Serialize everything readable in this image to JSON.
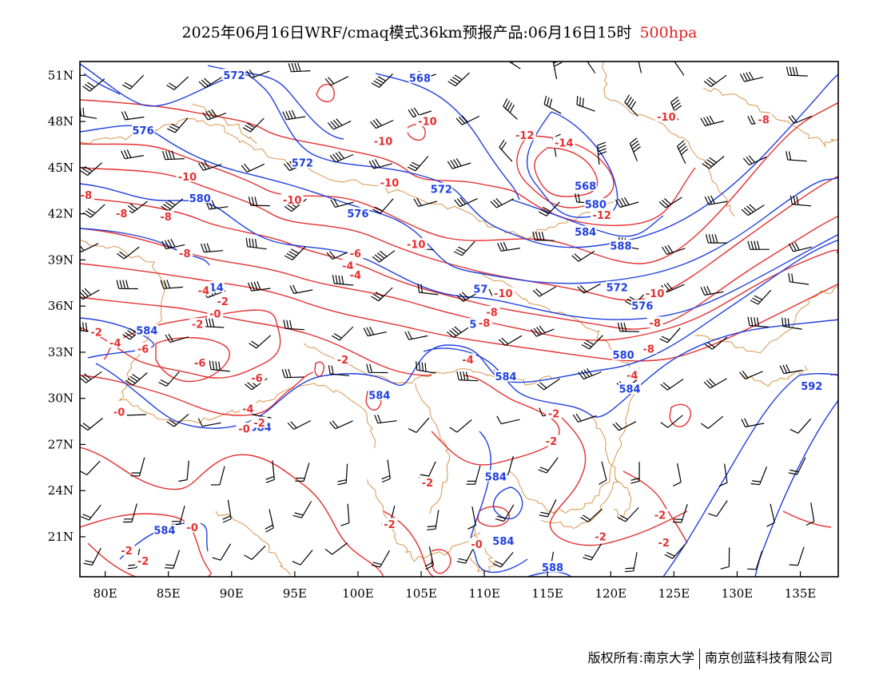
{
  "header": {
    "title": "2025年06月16日WRF/cmaq模式36km预报产品:06月16日15时",
    "level": "500hpa"
  },
  "axes": {
    "lon_range": [
      78,
      138
    ],
    "lat_range": [
      18.4,
      51.9
    ],
    "lon_ticks": [
      "80E",
      "85E",
      "90E",
      "95E",
      "100E",
      "105E",
      "110E",
      "115E",
      "120E",
      "125E",
      "130E",
      "135E"
    ],
    "lat_ticks": [
      "51N",
      "48N",
      "45N",
      "42N",
      "39N",
      "36N",
      "33N",
      "30N",
      "27N",
      "24N",
      "21N"
    ]
  },
  "colors": {
    "geopotential": "#1f3fe0",
    "temperature": "#e53030",
    "boundary": "#d68a3a",
    "wind": "#000000",
    "title_level": "#e02020"
  },
  "geopotential_labels": [
    {
      "text": "572",
      "lon": 90.2,
      "lat": 51.0
    },
    {
      "text": "568",
      "lon": 104.9,
      "lat": 50.8
    },
    {
      "text": "576",
      "lon": 83.0,
      "lat": 47.4
    },
    {
      "text": "572",
      "lon": 95.6,
      "lat": 45.3
    },
    {
      "text": "572",
      "lon": 106.6,
      "lat": 43.6
    },
    {
      "text": "580",
      "lon": 87.5,
      "lat": 43.0
    },
    {
      "text": "576",
      "lon": 100.0,
      "lat": 42.0
    },
    {
      "text": "568",
      "lon": 118.0,
      "lat": 43.8
    },
    {
      "text": "580",
      "lon": 118.8,
      "lat": 42.6
    },
    {
      "text": "584",
      "lon": 118.0,
      "lat": 40.8
    },
    {
      "text": "588",
      "lon": 120.8,
      "lat": 39.9
    },
    {
      "text": "572",
      "lon": 120.5,
      "lat": 37.2
    },
    {
      "text": "576",
      "lon": 122.5,
      "lat": 36.0
    },
    {
      "text": "584",
      "lon": 83.3,
      "lat": 34.4
    },
    {
      "text": "580",
      "lon": 121.0,
      "lat": 32.8
    },
    {
      "text": "584",
      "lon": 111.7,
      "lat": 31.4
    },
    {
      "text": "584",
      "lon": 121.5,
      "lat": 30.6
    },
    {
      "text": "584",
      "lon": 101.7,
      "lat": 30.2
    },
    {
      "text": "584",
      "lon": 92.3,
      "lat": 28.1
    },
    {
      "text": "592",
      "lon": 135.9,
      "lat": 30.8
    },
    {
      "text": "584",
      "lon": 110.9,
      "lat": 24.9
    },
    {
      "text": "584",
      "lon": 84.7,
      "lat": 21.4
    },
    {
      "text": "584",
      "lon": 111.5,
      "lat": 20.7
    },
    {
      "text": "588",
      "lon": 115.4,
      "lat": 19.0
    },
    {
      "text": "57",
      "lon": 109.7,
      "lat": 37.1
    },
    {
      "text": "14",
      "lon": 88.8,
      "lat": 37.2
    },
    {
      "text": "5",
      "lon": 109.1,
      "lat": 34.8
    }
  ],
  "temperature_labels": [
    {
      "text": "-10",
      "lon": 105.5,
      "lat": 48.0
    },
    {
      "text": "-10",
      "lon": 102.0,
      "lat": 46.7
    },
    {
      "text": "-12",
      "lon": 113.2,
      "lat": 47.1
    },
    {
      "text": "-14",
      "lon": 116.3,
      "lat": 46.6
    },
    {
      "text": "-10",
      "lon": 124.4,
      "lat": 48.3
    },
    {
      "text": "-8",
      "lon": 132.1,
      "lat": 48.1
    },
    {
      "text": "-10",
      "lon": 86.5,
      "lat": 44.4
    },
    {
      "text": "-10",
      "lon": 102.5,
      "lat": 44.0
    },
    {
      "text": "-10",
      "lon": 94.8,
      "lat": 42.9
    },
    {
      "text": "-8",
      "lon": 78.5,
      "lat": 43.2
    },
    {
      "text": "-8",
      "lon": 81.3,
      "lat": 42.0
    },
    {
      "text": "-8",
      "lon": 84.8,
      "lat": 41.8
    },
    {
      "text": "-12",
      "lon": 119.3,
      "lat": 41.9
    },
    {
      "text": "-10",
      "lon": 104.6,
      "lat": 40.0
    },
    {
      "text": "-8",
      "lon": 86.3,
      "lat": 39.4
    },
    {
      "text": "-6",
      "lon": 99.8,
      "lat": 39.4
    },
    {
      "text": "-4",
      "lon": 99.2,
      "lat": 38.6
    },
    {
      "text": "-4",
      "lon": 99.8,
      "lat": 38.0
    },
    {
      "text": "-10",
      "lon": 111.5,
      "lat": 36.8
    },
    {
      "text": "-10",
      "lon": 123.5,
      "lat": 36.8
    },
    {
      "text": "-4",
      "lon": 87.8,
      "lat": 37.0
    },
    {
      "text": "-2",
      "lon": 89.3,
      "lat": 36.3
    },
    {
      "text": "-0",
      "lon": 88.7,
      "lat": 35.5
    },
    {
      "text": "-8",
      "lon": 110.6,
      "lat": 35.6
    },
    {
      "text": "-8",
      "lon": 110.0,
      "lat": 34.9
    },
    {
      "text": "-8",
      "lon": 123.5,
      "lat": 34.9
    },
    {
      "text": "-2",
      "lon": 87.3,
      "lat": 34.8
    },
    {
      "text": "-2",
      "lon": 79.3,
      "lat": 34.3
    },
    {
      "text": "-4",
      "lon": 80.8,
      "lat": 33.6
    },
    {
      "text": "-6",
      "lon": 83.0,
      "lat": 33.2
    },
    {
      "text": "-8",
      "lon": 123.0,
      "lat": 33.2
    },
    {
      "text": "-2",
      "lon": 98.8,
      "lat": 32.5
    },
    {
      "text": "-4",
      "lon": 108.7,
      "lat": 32.5
    },
    {
      "text": "-6",
      "lon": 87.5,
      "lat": 32.3
    },
    {
      "text": "-6",
      "lon": 92.0,
      "lat": 31.3
    },
    {
      "text": "-4",
      "lon": 121.7,
      "lat": 31.5
    },
    {
      "text": "-0",
      "lon": 81.1,
      "lat": 29.1
    },
    {
      "text": "-4",
      "lon": 91.3,
      "lat": 29.3
    },
    {
      "text": "-2",
      "lon": 92.2,
      "lat": 28.4
    },
    {
      "text": "-0",
      "lon": 91.0,
      "lat": 28.0
    },
    {
      "text": "-2",
      "lon": 115.5,
      "lat": 29.0
    },
    {
      "text": "-2",
      "lon": 115.3,
      "lat": 27.2
    },
    {
      "text": "-2",
      "lon": 105.5,
      "lat": 24.5
    },
    {
      "text": "-2",
      "lon": 123.9,
      "lat": 22.4
    },
    {
      "text": "-2",
      "lon": 102.5,
      "lat": 21.8
    },
    {
      "text": "-0",
      "lon": 86.9,
      "lat": 21.6
    },
    {
      "text": "-2",
      "lon": 119.2,
      "lat": 21.0
    },
    {
      "text": "-2",
      "lon": 124.2,
      "lat": 20.6
    },
    {
      "text": "-0",
      "lon": 109.4,
      "lat": 20.5
    },
    {
      "text": "-2",
      "lon": 81.7,
      "lat": 20.1
    },
    {
      "text": "-2",
      "lon": 83.0,
      "lat": 19.4
    }
  ],
  "footer": {
    "left": "版权所有:南京大学",
    "right": "南京创蓝科技有限公司"
  }
}
